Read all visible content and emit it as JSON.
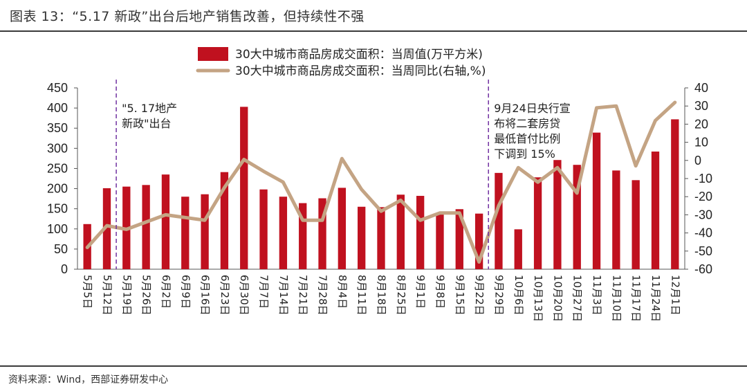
{
  "header": {
    "title": "图表 13：“5.17 新政”出台后地产销售改善，但持续性不强"
  },
  "footer": {
    "source": "资料来源：Wind，西部证券研发中心"
  },
  "colors": {
    "bar": "#C0111F",
    "line": "#C4A484",
    "marker_line": "#7030A0"
  },
  "chart_data": {
    "type": "bar",
    "categories": [
      "5月5日",
      "5月12日",
      "5月19日",
      "5月26日",
      "6月2日",
      "6月9日",
      "6月16日",
      "6月23日",
      "6月30日",
      "7月7日",
      "7月14日",
      "7月21日",
      "7月28日",
      "8月4日",
      "8月11日",
      "8月18日",
      "8月25日",
      "9月1日",
      "9月8日",
      "9月15日",
      "9月22日",
      "9月29日",
      "10月6日",
      "10月13日",
      "10月20日",
      "10月27日",
      "11月3日",
      "11月10日",
      "11月17日",
      "11月24日",
      "12月1日"
    ],
    "series": [
      {
        "name": "30大中城市商品房成交面积：当周值(万平方米)",
        "type": "bar",
        "axis": "left",
        "values": [
          112,
          201,
          205,
          209,
          235,
          180,
          186,
          241,
          403,
          198,
          180,
          164,
          176,
          202,
          155,
          154,
          185,
          182,
          140,
          149,
          138,
          239,
          99,
          228,
          271,
          259,
          339,
          245,
          221,
          292,
          372
        ]
      },
      {
        "name": "30大中城市商品房成交面积：当周同比(右轴,%)",
        "type": "line",
        "axis": "right",
        "values": [
          -48,
          -36,
          -38,
          -34,
          -30,
          -31.5,
          -33,
          -15,
          0.5,
          -6,
          -12,
          -33,
          -33,
          1,
          -16,
          -28,
          -22,
          -33,
          -29,
          -29,
          -56,
          -25,
          -4,
          -12,
          -4,
          -18,
          29,
          30,
          -3,
          22,
          32
        ]
      }
    ],
    "yleft": {
      "min": 0,
      "max": 450,
      "ticks": [
        0,
        50,
        100,
        150,
        200,
        250,
        300,
        350,
        400,
        450
      ]
    },
    "yright": {
      "min": -60,
      "max": 40,
      "ticks": [
        -60,
        -50,
        -40,
        -30,
        -20,
        -10,
        0,
        10,
        20,
        30,
        40
      ]
    },
    "annotations": [
      {
        "at": "5月19日",
        "lines": [
          "\"5. 17地产",
          "新政\"出台"
        ]
      },
      {
        "at": "9月29日",
        "lines": [
          "9月24日央行宣",
          "布将二套房贷",
          "最低首付比例",
          "下调到 15%"
        ]
      }
    ]
  }
}
